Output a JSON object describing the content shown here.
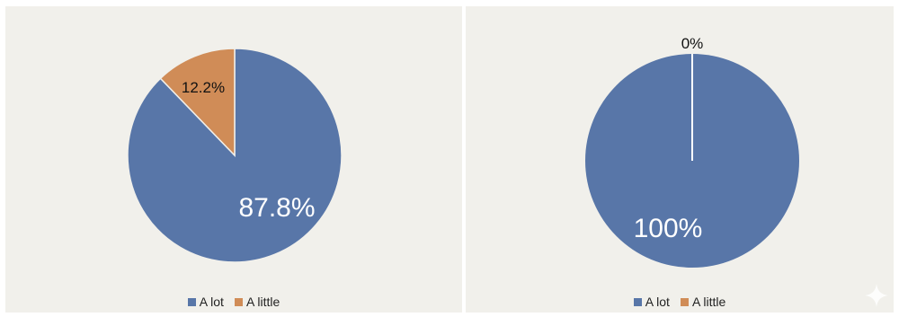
{
  "chart_data": [
    {
      "type": "pie",
      "categories": [
        "A lot",
        "A little"
      ],
      "values": [
        87.8,
        12.2
      ],
      "data_labels": [
        "87.8%",
        "12.2%"
      ],
      "colors": [
        "#5876a8",
        "#d08c57"
      ],
      "legend": [
        "A lot",
        "A little"
      ],
      "legend_position": "bottom"
    },
    {
      "type": "pie",
      "categories": [
        "A lot",
        "A little"
      ],
      "values": [
        100,
        0
      ],
      "data_labels": [
        "100%",
        "0%"
      ],
      "colors": [
        "#5876a8",
        "#d08c57"
      ],
      "legend": [
        "A lot",
        "A little"
      ],
      "legend_position": "bottom"
    }
  ],
  "decorations": {
    "watermark_icon": "sparkle-icon"
  }
}
